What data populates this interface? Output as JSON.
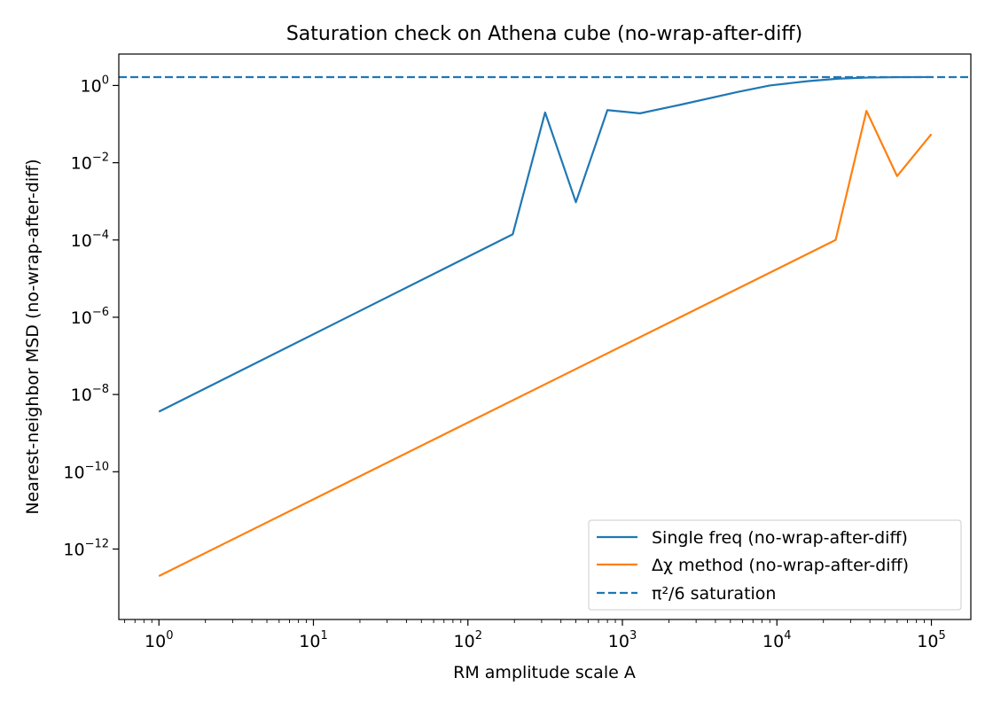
{
  "chart_data": {
    "type": "line",
    "title": "Saturation check on Athena cube (no-wrap-after-diff)",
    "xlabel": "RM amplitude scale A",
    "ylabel": "Nearest-neighbor MSD (no-wrap-after-diff)",
    "xscale": "log",
    "yscale": "log",
    "xlim": [
      0.55,
      180000
    ],
    "ylim": [
      1.5e-14,
      6.5
    ],
    "x_ticks": [
      {
        "value": 1,
        "base": "10",
        "exp": "0"
      },
      {
        "value": 10,
        "base": "10",
        "exp": "1"
      },
      {
        "value": 100,
        "base": "10",
        "exp": "2"
      },
      {
        "value": 1000,
        "base": "10",
        "exp": "3"
      },
      {
        "value": 10000,
        "base": "10",
        "exp": "4"
      },
      {
        "value": 100000,
        "base": "10",
        "exp": "5"
      }
    ],
    "y_ticks": [
      {
        "value": 1e-12,
        "base": "10",
        "exp": "−12"
      },
      {
        "value": 1e-10,
        "base": "10",
        "exp": "−10"
      },
      {
        "value": 1e-08,
        "base": "10",
        "exp": "−8"
      },
      {
        "value": 1e-06,
        "base": "10",
        "exp": "−6"
      },
      {
        "value": 0.0001,
        "base": "10",
        "exp": "−4"
      },
      {
        "value": 0.01,
        "base": "10",
        "exp": "−2"
      },
      {
        "value": 1,
        "base": "10",
        "exp": "0"
      }
    ],
    "grid": false,
    "legend_position": "lower-right",
    "series": [
      {
        "name": "Single freq (no-wrap-after-diff)",
        "color": "#1f77b4",
        "style": "solid",
        "x": [
          1,
          195,
          316,
          500,
          800,
          1300,
          2400,
          5600,
          9000,
          16000,
          25000,
          38000,
          60000,
          100000
        ],
        "y": [
          3.6e-09,
          0.00014,
          0.2,
          0.00095,
          0.23,
          0.19,
          0.32,
          0.68,
          1.0,
          1.3,
          1.5,
          1.6,
          1.64,
          1.65
        ]
      },
      {
        "name": "Δχ method (no-wrap-after-diff)",
        "color": "#ff7f0e",
        "style": "solid",
        "x": [
          1,
          24000,
          38000,
          60000,
          100000
        ],
        "y": [
          2e-13,
          0.0001,
          0.22,
          0.0045,
          0.055
        ]
      },
      {
        "name": "π²/6 saturation",
        "color": "#1f77b4",
        "style": "dashed",
        "x": [
          0.55,
          180000
        ],
        "y": [
          1.6449,
          1.6449
        ]
      }
    ]
  }
}
